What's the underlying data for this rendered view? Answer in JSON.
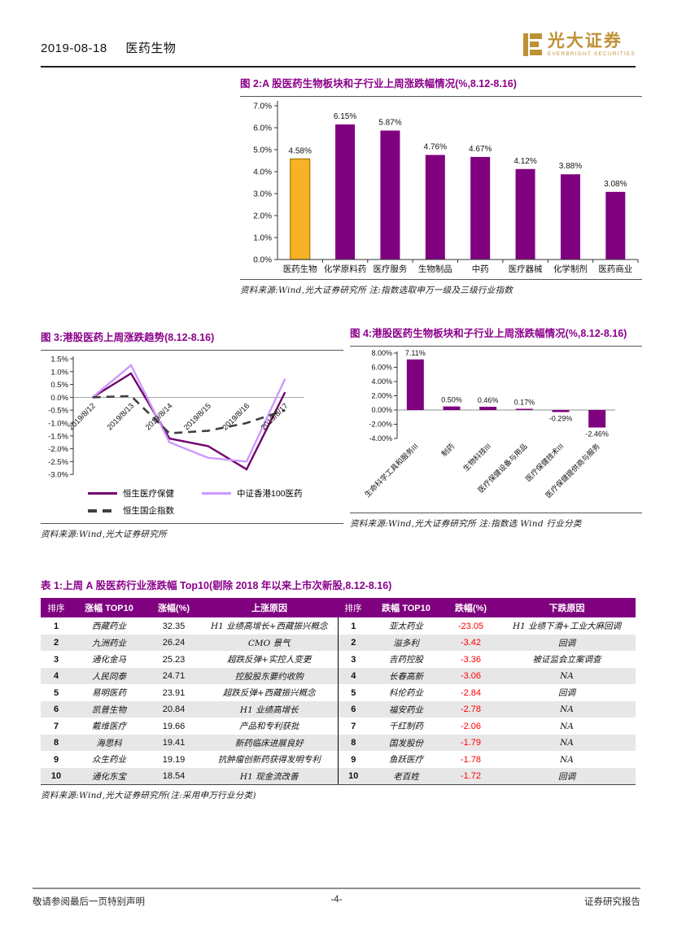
{
  "header": {
    "date": "2019-08-18",
    "section": "医药生物",
    "logo": {
      "name": "光大证券",
      "subtitle": "EVERBRIGHT SECURITIES"
    }
  },
  "colors": {
    "title_purple": "#8B008B",
    "bar_purple": "#80017F",
    "gold": "#F5B325",
    "gold_border": "#A87800",
    "line_dark_purple": "#70006B",
    "line_light_purple": "#CC99FF",
    "line_dash_gray": "#404040",
    "table_header_bg": "#80017F",
    "negative_red": "#FF0000"
  },
  "fig2": {
    "title": "图 2:A 股医药生物板块和子行业上周涨跌幅情况(%,8.12-8.16)",
    "source": "资料来源:Wind,光大证券研究所  注:指数选取申万一级及三级行业指数",
    "chart_data": {
      "type": "bar",
      "categories": [
        "医药生物",
        "化学原料药",
        "医疗服务",
        "生物制品",
        "中药",
        "医疗器械",
        "化学制剂",
        "医药商业"
      ],
      "values": [
        4.58,
        6.15,
        5.87,
        4.76,
        4.67,
        4.12,
        3.88,
        3.08
      ],
      "labels": [
        "4.58%",
        "6.15%",
        "5.87%",
        "4.76%",
        "4.67%",
        "4.12%",
        "3.88%",
        "3.08%"
      ],
      "ylim": [
        0,
        7
      ],
      "ytick_labels": [
        "0.0%",
        "1.0%",
        "2.0%",
        "3.0%",
        "4.0%",
        "5.0%",
        "6.0%",
        "7.0%"
      ],
      "highlight_index": 0
    }
  },
  "fig3": {
    "title": "图 3:港股医药上周涨跌趋势(8.12-8.16)",
    "source": "资料来源:Wind,光大证券研究所",
    "chart_data": {
      "type": "line",
      "x": [
        "2019/8/12",
        "2019/8/13",
        "2019/8/14",
        "2019/8/15",
        "2019/8/16",
        "2019/8/17"
      ],
      "series": [
        {
          "name": "恒生医疗保健",
          "values": [
            0,
            0.93,
            -1.6,
            -1.9,
            -2.8,
            0.2
          ],
          "style": "solid-dark"
        },
        {
          "name": "中证香港100医药",
          "values": [
            0,
            1.25,
            -1.75,
            -2.35,
            -2.5,
            0.72
          ],
          "style": "solid-light"
        },
        {
          "name": "恒生国企指数",
          "values": [
            0,
            0.05,
            -1.4,
            -1.3,
            -1.0,
            -0.5
          ],
          "style": "dashed"
        }
      ],
      "ylim": [
        -3,
        1.5
      ],
      "ytick_labels": [
        "1.5%",
        "1.0%",
        "0.5%",
        "0.0%",
        "-0.5%",
        "-1.0%",
        "-1.5%",
        "-2.0%",
        "-2.5%",
        "-3.0%"
      ],
      "legend_position": "bottom"
    }
  },
  "fig4": {
    "title": "图 4:港股医药生物板块和子行业上周涨跌幅情况(%,8.12-8.16)",
    "source": "资料来源:Wind,光大证券研究所 注:指数选 Wind 行业分类",
    "chart_data": {
      "type": "bar",
      "categories": [
        "生命科学工具和服务III",
        "制药",
        "生物科技III",
        "医疗保健设备与用品",
        "医疗保健技术III",
        "医疗保健提供商与服务"
      ],
      "values": [
        7.11,
        0.5,
        0.46,
        0.17,
        -0.29,
        -2.46
      ],
      "labels": [
        "7.11%",
        "0.50%",
        "0.46%",
        "0.17%",
        "-0.29%",
        "-2.46%"
      ],
      "ylim": [
        -4,
        8
      ],
      "ytick_labels": [
        "8.00%",
        "6.00%",
        "4.00%",
        "2.00%",
        "0.00%",
        "-2.00%",
        "-4.00%"
      ]
    }
  },
  "table1": {
    "title": "表 1:上周 A 股医药行业涨跌幅 Top10(剔除 2018 年以来上市次新股,8.12-8.16)",
    "source": "资料来源:Wind,光大证券研究所(注:采用申万行业分类)",
    "headers": [
      "排序",
      "涨幅 TOP10",
      "涨幅(%)",
      "上涨原因",
      "排序",
      "跌幅 TOP10",
      "跌幅(%)",
      "下跌原因"
    ],
    "rows": [
      {
        "rank": "1",
        "up_name": "西藏药业",
        "up_pct": "32.35",
        "up_reason": "H1 业绩高增长+西藏振兴概念",
        "rank2": "1",
        "down_name": "亚太药业",
        "down_pct": "-23.05",
        "down_reason": "H1 业绩下滑+工业大麻回调"
      },
      {
        "rank": "2",
        "up_name": "九洲药业",
        "up_pct": "26.24",
        "up_reason": "CMO 景气",
        "rank2": "2",
        "down_name": "溢多利",
        "down_pct": "-3.42",
        "down_reason": "回调"
      },
      {
        "rank": "3",
        "up_name": "通化金马",
        "up_pct": "25.23",
        "up_reason": "超跌反弹+实控人变更",
        "rank2": "3",
        "down_name": "吉药控股",
        "down_pct": "-3.36",
        "down_reason": "被证监会立案调查"
      },
      {
        "rank": "4",
        "up_name": "人民同泰",
        "up_pct": "24.71",
        "up_reason": "控股股东要约收购",
        "rank2": "4",
        "down_name": "长春高新",
        "down_pct": "-3.06",
        "down_reason": "NA"
      },
      {
        "rank": "5",
        "up_name": "易明医药",
        "up_pct": "23.91",
        "up_reason": "超跌反弹+西藏振兴概念",
        "rank2": "5",
        "down_name": "科伦药业",
        "down_pct": "-2.84",
        "down_reason": "回调"
      },
      {
        "rank": "6",
        "up_name": "凯普生物",
        "up_pct": "20.84",
        "up_reason": "H1 业绩高增长",
        "rank2": "6",
        "down_name": "福安药业",
        "down_pct": "-2.78",
        "down_reason": "NA"
      },
      {
        "rank": "7",
        "up_name": "戴维医疗",
        "up_pct": "19.66",
        "up_reason": "产品和专利获批",
        "rank2": "7",
        "down_name": "千红制药",
        "down_pct": "-2.06",
        "down_reason": "NA"
      },
      {
        "rank": "8",
        "up_name": "海思科",
        "up_pct": "19.41",
        "up_reason": "新药临床进展良好",
        "rank2": "8",
        "down_name": "国发股份",
        "down_pct": "-1.79",
        "down_reason": "NA"
      },
      {
        "rank": "9",
        "up_name": "众生药业",
        "up_pct": "19.19",
        "up_reason": "抗肿瘤创新药获得发明专利",
        "rank2": "9",
        "down_name": "鱼跃医疗",
        "down_pct": "-1.78",
        "down_reason": "NA"
      },
      {
        "rank": "10",
        "up_name": "通化东宝",
        "up_pct": "18.54",
        "up_reason": "H1 现金流改善",
        "rank2": "10",
        "down_name": "老百姓",
        "down_pct": "-1.72",
        "down_reason": "回调"
      }
    ]
  },
  "footer": {
    "left": "敬请参阅最后一页特别声明",
    "center": "-4-",
    "right": "证券研究报告"
  }
}
